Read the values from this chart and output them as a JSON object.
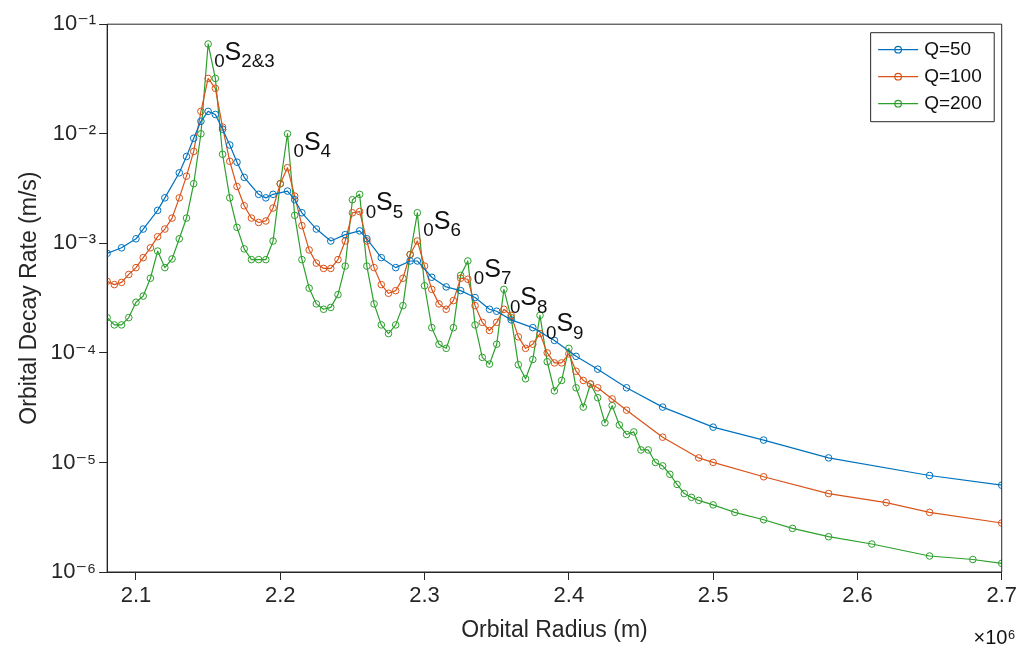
{
  "chart_data": {
    "type": "line",
    "xlabel": "Orbital Radius (m)",
    "ylabel": "Orbital Decay Rate (m/s)",
    "log": "y",
    "grid": false,
    "legend": "top right",
    "marker": "circle",
    "line_style": "solid",
    "xlim": [
      2.08,
      2.7
    ],
    "xticks": [
      2.1,
      2.2,
      2.3,
      2.4,
      2.5,
      2.6,
      2.7
    ],
    "ylim": [
      1e-06,
      0.1
    ],
    "yticks": [
      {
        "value": 1e-06,
        "label": "10⁻⁶"
      },
      {
        "value": 1e-05,
        "label": "10⁻⁵"
      },
      {
        "value": 0.0001,
        "label": "10⁻⁴"
      },
      {
        "value": 0.001,
        "label": "10⁻³"
      },
      {
        "value": 0.01,
        "label": "10⁻²"
      },
      {
        "value": 0.1,
        "label": "10⁻¹"
      }
    ],
    "series": [
      {
        "name": "Q=50",
        "color": "#0072bd",
        "x": [
          2.08,
          2.09,
          2.1,
          2.105,
          2.115,
          2.12,
          2.13,
          2.135,
          2.14,
          2.145,
          2.15,
          2.155,
          2.16,
          2.165,
          2.17,
          2.175,
          2.185,
          2.19,
          2.195,
          2.205,
          2.21,
          2.215,
          2.225,
          2.235,
          2.245,
          2.255,
          2.26,
          2.27,
          2.28,
          2.29,
          2.295,
          2.305,
          2.315,
          2.325,
          2.335,
          2.345,
          2.35,
          2.36,
          2.375,
          2.39,
          2.405,
          2.42,
          2.44,
          2.465,
          2.5,
          2.535,
          2.58,
          2.65,
          2.7
        ],
        "values": [
          0.00081,
          0.00091,
          0.0011,
          0.00135,
          0.002,
          0.0026,
          0.0044,
          0.0062,
          0.0091,
          0.013,
          0.016,
          0.015,
          0.011,
          0.0079,
          0.0055,
          0.004,
          0.0028,
          0.0026,
          0.0028,
          0.003,
          0.0025,
          0.0019,
          0.00135,
          0.00105,
          0.0012,
          0.0013,
          0.0011,
          0.00074,
          0.0006,
          0.00069,
          0.00069,
          0.00049,
          0.0004,
          0.00037,
          0.00032,
          0.00025,
          0.00024,
          0.0002,
          0.00017,
          0.00013,
          9.3e-05,
          7.1e-05,
          4.8e-05,
          3.2e-05,
          2.1e-05,
          1.6e-05,
          1.1e-05,
          7.6e-06,
          6.2e-06
        ]
      },
      {
        "name": "Q=100",
        "color": "#d95319",
        "x": [
          2.08,
          2.085,
          2.09,
          2.095,
          2.1,
          2.105,
          2.11,
          2.115,
          2.12,
          2.125,
          2.13,
          2.135,
          2.14,
          2.145,
          2.15,
          2.155,
          2.16,
          2.165,
          2.17,
          2.175,
          2.18,
          2.185,
          2.19,
          2.195,
          2.2,
          2.205,
          2.21,
          2.215,
          2.22,
          2.225,
          2.23,
          2.235,
          2.24,
          2.245,
          2.25,
          2.255,
          2.26,
          2.265,
          2.27,
          2.275,
          2.28,
          2.285,
          2.29,
          2.295,
          2.3,
          2.305,
          2.31,
          2.315,
          2.32,
          2.325,
          2.33,
          2.335,
          2.34,
          2.345,
          2.35,
          2.355,
          2.36,
          2.365,
          2.37,
          2.375,
          2.38,
          2.385,
          2.39,
          2.395,
          2.4,
          2.405,
          2.41,
          2.415,
          2.42,
          2.43,
          2.44,
          2.465,
          2.49,
          2.5,
          2.535,
          2.58,
          2.62,
          2.65,
          2.7
        ],
        "values": [
          0.00045,
          0.00042,
          0.00044,
          0.00052,
          0.0006,
          0.00074,
          0.00091,
          0.00115,
          0.00135,
          0.0017,
          0.0026,
          0.0041,
          0.0069,
          0.016,
          0.032,
          0.026,
          0.0115,
          0.0056,
          0.0033,
          0.0022,
          0.0017,
          0.00155,
          0.0016,
          0.0021,
          0.0035,
          0.0049,
          0.0027,
          0.00145,
          0.00087,
          0.00066,
          0.00059,
          0.00059,
          0.00071,
          0.00105,
          0.0019,
          0.00195,
          0.00105,
          0.0006,
          0.00042,
          0.00035,
          0.00037,
          0.00048,
          0.00079,
          0.00105,
          0.00062,
          0.00038,
          0.00028,
          0.00025,
          0.0003,
          0.00048,
          0.00047,
          0.00027,
          0.00019,
          0.00016,
          0.00019,
          0.00025,
          0.00022,
          0.00014,
          0.00011,
          0.00012,
          0.00015,
          0.0001,
          8.1e-05,
          8.1e-05,
          9.8e-05,
          6.8e-05,
          5.6e-05,
          5.2e-05,
          4.8e-05,
          3.8e-05,
          3e-05,
          1.7e-05,
          1.1e-05,
          1e-05,
          7.4e-06,
          5.2e-06,
          4.3e-06,
          3.5e-06,
          2.8e-06
        ]
      },
      {
        "name": "Q=200",
        "color": "#2ca02c",
        "x": [
          2.08,
          2.085,
          2.09,
          2.095,
          2.1,
          2.105,
          2.11,
          2.115,
          2.12,
          2.125,
          2.13,
          2.135,
          2.14,
          2.145,
          2.15,
          2.155,
          2.16,
          2.165,
          2.17,
          2.175,
          2.18,
          2.185,
          2.19,
          2.195,
          2.2,
          2.205,
          2.21,
          2.215,
          2.22,
          2.225,
          2.23,
          2.235,
          2.24,
          2.245,
          2.25,
          2.255,
          2.26,
          2.265,
          2.27,
          2.275,
          2.28,
          2.285,
          2.29,
          2.295,
          2.3,
          2.305,
          2.31,
          2.315,
          2.32,
          2.325,
          2.33,
          2.335,
          2.34,
          2.345,
          2.35,
          2.355,
          2.36,
          2.365,
          2.37,
          2.375,
          2.38,
          2.385,
          2.39,
          2.395,
          2.4,
          2.405,
          2.41,
          2.415,
          2.42,
          2.425,
          2.43,
          2.435,
          2.44,
          2.445,
          2.45,
          2.455,
          2.46,
          2.465,
          2.47,
          2.475,
          2.48,
          2.485,
          2.49,
          2.5,
          2.515,
          2.535,
          2.555,
          2.58,
          2.61,
          2.65,
          2.68,
          2.7
        ],
        "values": [
          0.00021,
          0.00018,
          0.00018,
          0.00021,
          0.00029,
          0.00033,
          0.00048,
          0.00085,
          0.0006,
          0.00072,
          0.0011,
          0.0017,
          0.0035,
          0.01,
          0.066,
          0.032,
          0.0065,
          0.0026,
          0.0014,
          0.00089,
          0.00071,
          0.00071,
          0.00071,
          0.00105,
          0.0035,
          0.01,
          0.0018,
          0.00071,
          0.00039,
          0.00028,
          0.00025,
          0.00026,
          0.00034,
          0.00062,
          0.0025,
          0.0028,
          0.00062,
          0.00028,
          0.00018,
          0.00015,
          0.00018,
          0.00027,
          0.00079,
          0.0019,
          0.00041,
          0.00017,
          0.00012,
          0.00011,
          0.00017,
          0.00051,
          0.00069,
          0.00018,
          9.1e-05,
          7.9e-05,
          0.00012,
          0.00038,
          0.00021,
          7.8e-05,
          5.8e-05,
          8.7e-05,
          0.00022,
          8.3e-05,
          4.5e-05,
          5.6e-05,
          0.00011,
          4.8e-05,
          3.2e-05,
          5.2e-05,
          3.9e-05,
          2.3e-05,
          3.3e-05,
          2.2e-05,
          1.8e-05,
          1.9e-05,
          1.3e-05,
          1.3e-05,
          1e-05,
          9.3e-06,
          7.8e-06,
          6.3e-06,
          5.2e-06,
          4.8e-06,
          4.5e-06,
          4.1e-06,
          3.5e-06,
          3e-06,
          2.5e-06,
          2.1e-06,
          1.8e-06,
          1.4e-06,
          1.3e-06,
          1.2e-06
        ]
      }
    ],
    "annotations": [
      {
        "text": "$_{0}$S$_{2&3}$",
        "x": 2.15,
        "y": 0.066
      },
      {
        "text": "$_{0}$S$_{4}$",
        "x": 2.205,
        "y": 0.01
      },
      {
        "text": "$_{0}$S$_{5}$",
        "x": 2.255,
        "y": 0.0028
      },
      {
        "text": "$_{0}$S$_{6}$",
        "x": 2.295,
        "y": 0.0019
      },
      {
        "text": "$_{0}$S$_{7}$",
        "x": 2.33,
        "y": 0.00069
      },
      {
        "text": "$_{0}$S$_{8}$",
        "x": 2.355,
        "y": 0.00038
      },
      {
        "text": "$_{0}$S$_{9}$",
        "x": 2.38,
        "y": 0.00022
      },
      "×10⁶"
    ]
  }
}
